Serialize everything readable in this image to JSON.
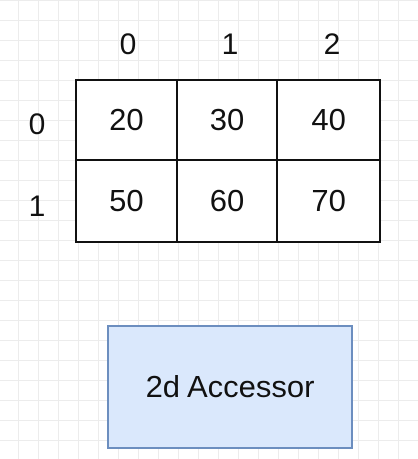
{
  "matrix": {
    "column_labels": [
      "0",
      "1",
      "2"
    ],
    "row_labels": [
      "0",
      "1"
    ],
    "rows": [
      [
        "20",
        "30",
        "40"
      ],
      [
        "50",
        "60",
        "70"
      ]
    ]
  },
  "accessor": {
    "label": "2d Accessor",
    "fill_color": "#dae8fc",
    "border_color": "#6c8ebf"
  }
}
